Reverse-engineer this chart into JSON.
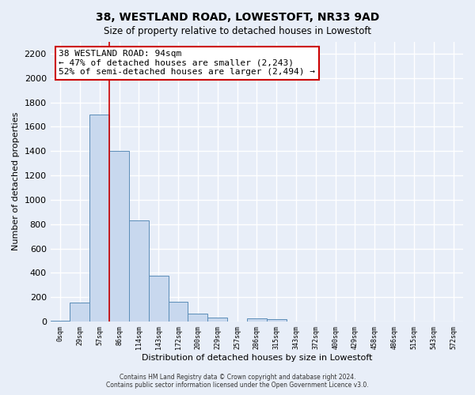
{
  "title": "38, WESTLAND ROAD, LOWESTOFT, NR33 9AD",
  "subtitle": "Size of property relative to detached houses in Lowestoft",
  "xlabel": "Distribution of detached houses by size in Lowestoft",
  "ylabel": "Number of detached properties",
  "bar_labels": [
    "0sqm",
    "29sqm",
    "57sqm",
    "86sqm",
    "114sqm",
    "143sqm",
    "172sqm",
    "200sqm",
    "229sqm",
    "257sqm",
    "286sqm",
    "315sqm",
    "343sqm",
    "372sqm",
    "400sqm",
    "429sqm",
    "458sqm",
    "486sqm",
    "515sqm",
    "543sqm",
    "572sqm"
  ],
  "bar_values": [
    10,
    155,
    1700,
    1400,
    830,
    380,
    160,
    65,
    30,
    0,
    25,
    20,
    0,
    0,
    0,
    0,
    0,
    0,
    0,
    0,
    0
  ],
  "bar_color": "#c8d8ee",
  "bar_edge_color": "#5b8db8",
  "property_line_x": 3,
  "property_line_color": "#cc0000",
  "annotation_title": "38 WESTLAND ROAD: 94sqm",
  "annotation_line1": "← 47% of detached houses are smaller (2,243)",
  "annotation_line2": "52% of semi-detached houses are larger (2,494) →",
  "annotation_box_color": "white",
  "annotation_box_edge": "#cc0000",
  "ylim": [
    0,
    2300
  ],
  "yticks": [
    0,
    200,
    400,
    600,
    800,
    1000,
    1200,
    1400,
    1600,
    1800,
    2000,
    2200
  ],
  "footer_line1": "Contains HM Land Registry data © Crown copyright and database right 2024.",
  "footer_line2": "Contains public sector information licensed under the Open Government Licence v3.0.",
  "background_color": "#e8eef8",
  "plot_bg_color": "#e8eef8",
  "grid_color": "white"
}
